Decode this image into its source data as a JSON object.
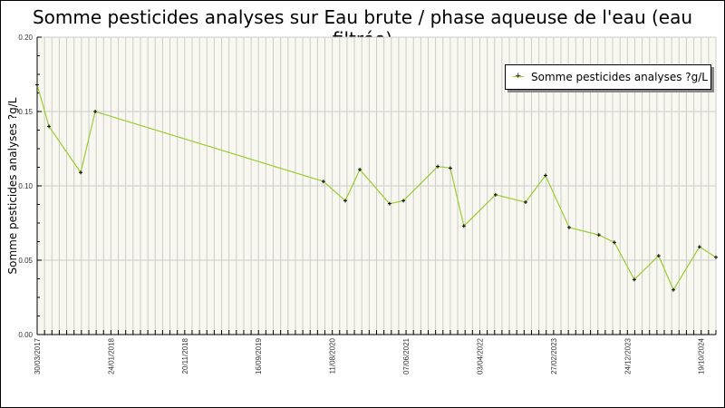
{
  "chart_data": {
    "type": "line",
    "title": "Somme pesticides analyses sur Eau brute / phase aqueuse de l'eau (eau filtrée)",
    "xlabel": "",
    "ylabel": "Somme pesticides analyses ?g/L",
    "ylim": [
      0,
      0.2
    ],
    "xlim": [
      "2017-03-30",
      "2024-10-19"
    ],
    "yticks": [
      "0.00",
      "0.05",
      "0.10",
      "0.15",
      "0.20"
    ],
    "xticks": [
      "30/03/2017",
      "24/01/2018",
      "20/11/2018",
      "16/09/2019",
      "11/08/2020",
      "07/06/2021",
      "03/04/2022",
      "27/02/2023",
      "24/12/2023",
      "19/10/2024"
    ],
    "grid": true,
    "legend_position": "top-right",
    "series": [
      {
        "name": "Somme pesticides analyses ?g/L",
        "color": "#9acd32",
        "x": [
          "2017-03-30",
          "2017-05-17",
          "2017-09-23",
          "2017-11-21",
          "2020-06-06",
          "2020-09-03",
          "2020-11-01",
          "2021-03-02",
          "2021-04-27",
          "2021-09-14",
          "2021-11-04",
          "2021-12-29",
          "2022-05-07",
          "2022-09-06",
          "2022-11-26",
          "2023-03-02",
          "2023-07-01",
          "2023-09-02",
          "2023-11-22",
          "2024-02-29",
          "2024-04-29",
          "2024-08-13",
          "2024-10-19"
        ],
        "y": [
          0.168,
          0.14,
          0.109,
          0.15,
          0.103,
          0.09,
          0.111,
          0.088,
          0.09,
          0.113,
          0.112,
          0.073,
          0.094,
          0.089,
          0.107,
          0.072,
          0.067,
          0.062,
          0.037,
          0.053,
          0.03,
          0.059,
          0.052
        ]
      }
    ]
  },
  "colors": {
    "plot_bg": "#f8f8f0",
    "grid": "#cccccc",
    "line": "#9acd32"
  }
}
